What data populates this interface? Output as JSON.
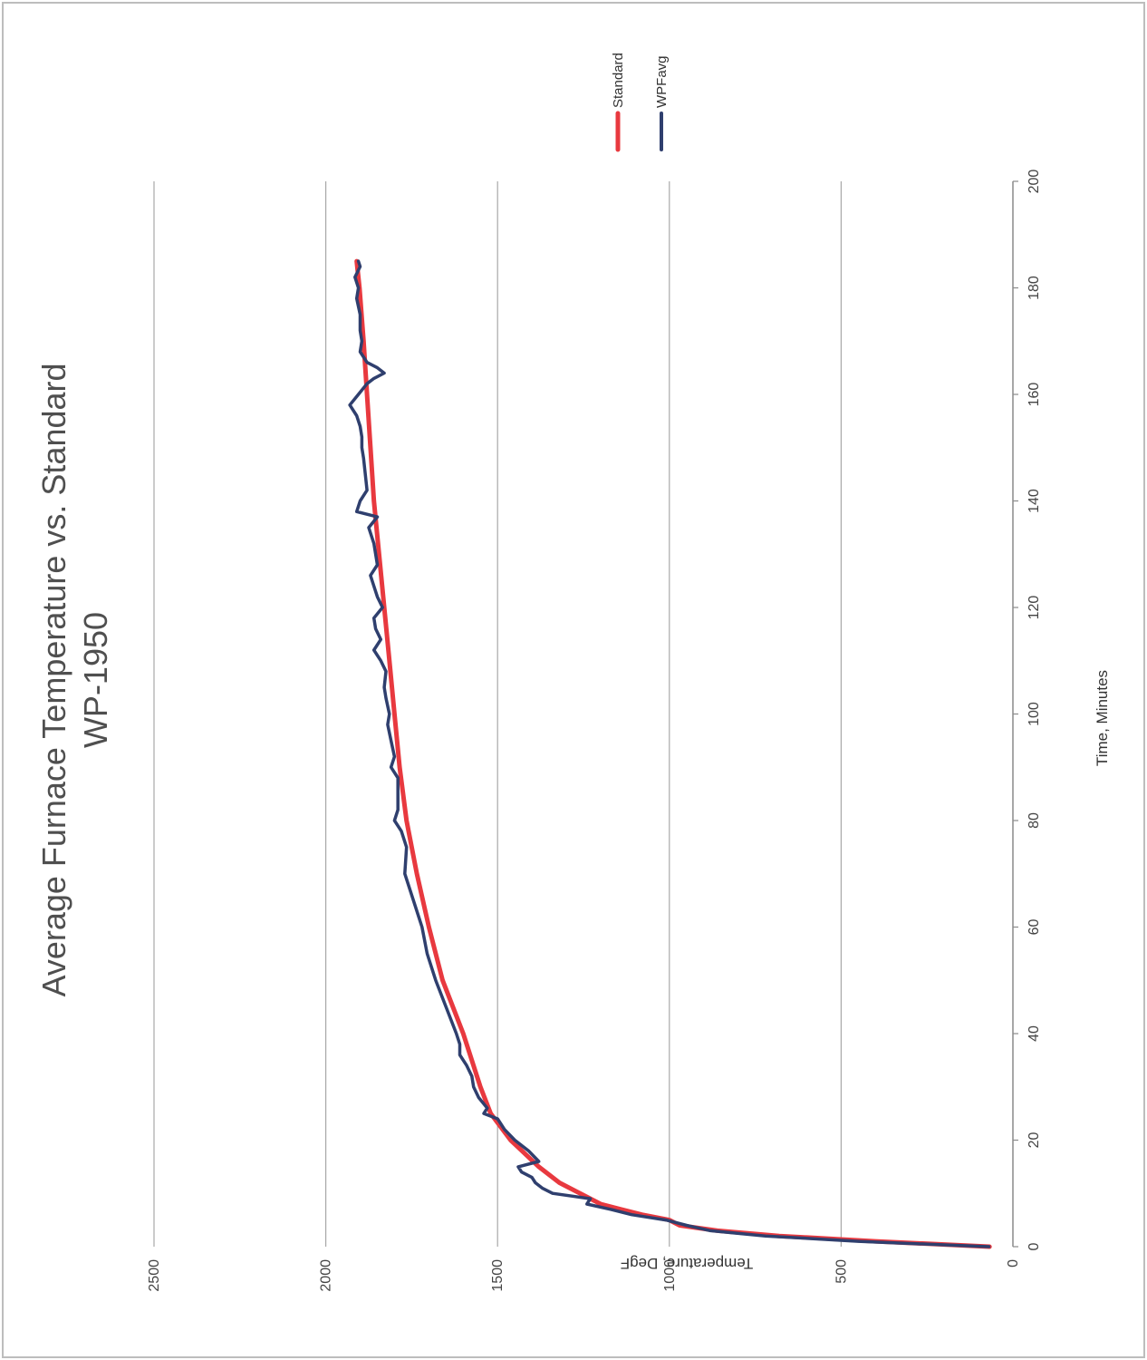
{
  "chart_data": {
    "type": "line",
    "title": "Average Furnace Temperature vs. Standard",
    "subtitle": "WP-1950",
    "xlabel": "Time, Minutes",
    "ylabel": "Temperature, DegF",
    "xlim": [
      0,
      200
    ],
    "ylim": [
      0,
      2500
    ],
    "x_ticks": [
      "0",
      "20",
      "40",
      "60",
      "80",
      "100",
      "120",
      "140",
      "160",
      "180",
      "200"
    ],
    "y_ticks": [
      "0",
      "500",
      "1000",
      "1500",
      "2000",
      "2500"
    ],
    "grid": "horizontal",
    "legend_position": "top-right",
    "series": [
      {
        "name": "Standard",
        "color": "#e8393f",
        "x": [
          0,
          1,
          2,
          3,
          4,
          5,
          6,
          7,
          8,
          10,
          12,
          15,
          20,
          25,
          30,
          40,
          50,
          60,
          70,
          80,
          90,
          100,
          110,
          120,
          130,
          140,
          150,
          160,
          170,
          180,
          185
        ],
        "y": [
          68,
          400,
          680,
          860,
          970,
          1000,
          1080,
          1140,
          1200,
          1260,
          1320,
          1380,
          1462,
          1520,
          1550,
          1600,
          1660,
          1700,
          1735,
          1765,
          1785,
          1800,
          1815,
          1830,
          1845,
          1860,
          1870,
          1880,
          1890,
          1902,
          1910
        ]
      },
      {
        "name": "WPFavg",
        "color": "#2f3f6e",
        "x": [
          0,
          1,
          2,
          3,
          4,
          5,
          6,
          7,
          8,
          9,
          10,
          11,
          12,
          13,
          14,
          15,
          16,
          18,
          20,
          22,
          24,
          25,
          26,
          28,
          30,
          32,
          34,
          36,
          38,
          40,
          45,
          50,
          55,
          60,
          65,
          70,
          75,
          78,
          80,
          82,
          85,
          88,
          90,
          92,
          95,
          98,
          100,
          103,
          105,
          108,
          110,
          112,
          114,
          116,
          118,
          120,
          122,
          124,
          126,
          128,
          130,
          132,
          135,
          137,
          138,
          140,
          142,
          145,
          148,
          150,
          152,
          154,
          156,
          158,
          160,
          162,
          163,
          164,
          165,
          166,
          168,
          170,
          172,
          175,
          178,
          180,
          182,
          184,
          185
        ],
        "y": [
          70,
          450,
          720,
          880,
          950,
          1010,
          1110,
          1170,
          1240,
          1230,
          1340,
          1370,
          1390,
          1400,
          1430,
          1440,
          1380,
          1410,
          1450,
          1480,
          1500,
          1540,
          1530,
          1555,
          1570,
          1575,
          1590,
          1610,
          1610,
          1620,
          1650,
          1680,
          1705,
          1720,
          1745,
          1770,
          1765,
          1780,
          1800,
          1790,
          1790,
          1790,
          1810,
          1800,
          1810,
          1820,
          1815,
          1825,
          1830,
          1825,
          1840,
          1860,
          1840,
          1855,
          1860,
          1835,
          1850,
          1860,
          1870,
          1850,
          1855,
          1860,
          1875,
          1850,
          1910,
          1900,
          1880,
          1885,
          1890,
          1895,
          1895,
          1900,
          1910,
          1930,
          1905,
          1880,
          1860,
          1830,
          1850,
          1880,
          1900,
          1895,
          1900,
          1900,
          1910,
          1905,
          1915,
          1900,
          1905
        ]
      }
    ]
  }
}
